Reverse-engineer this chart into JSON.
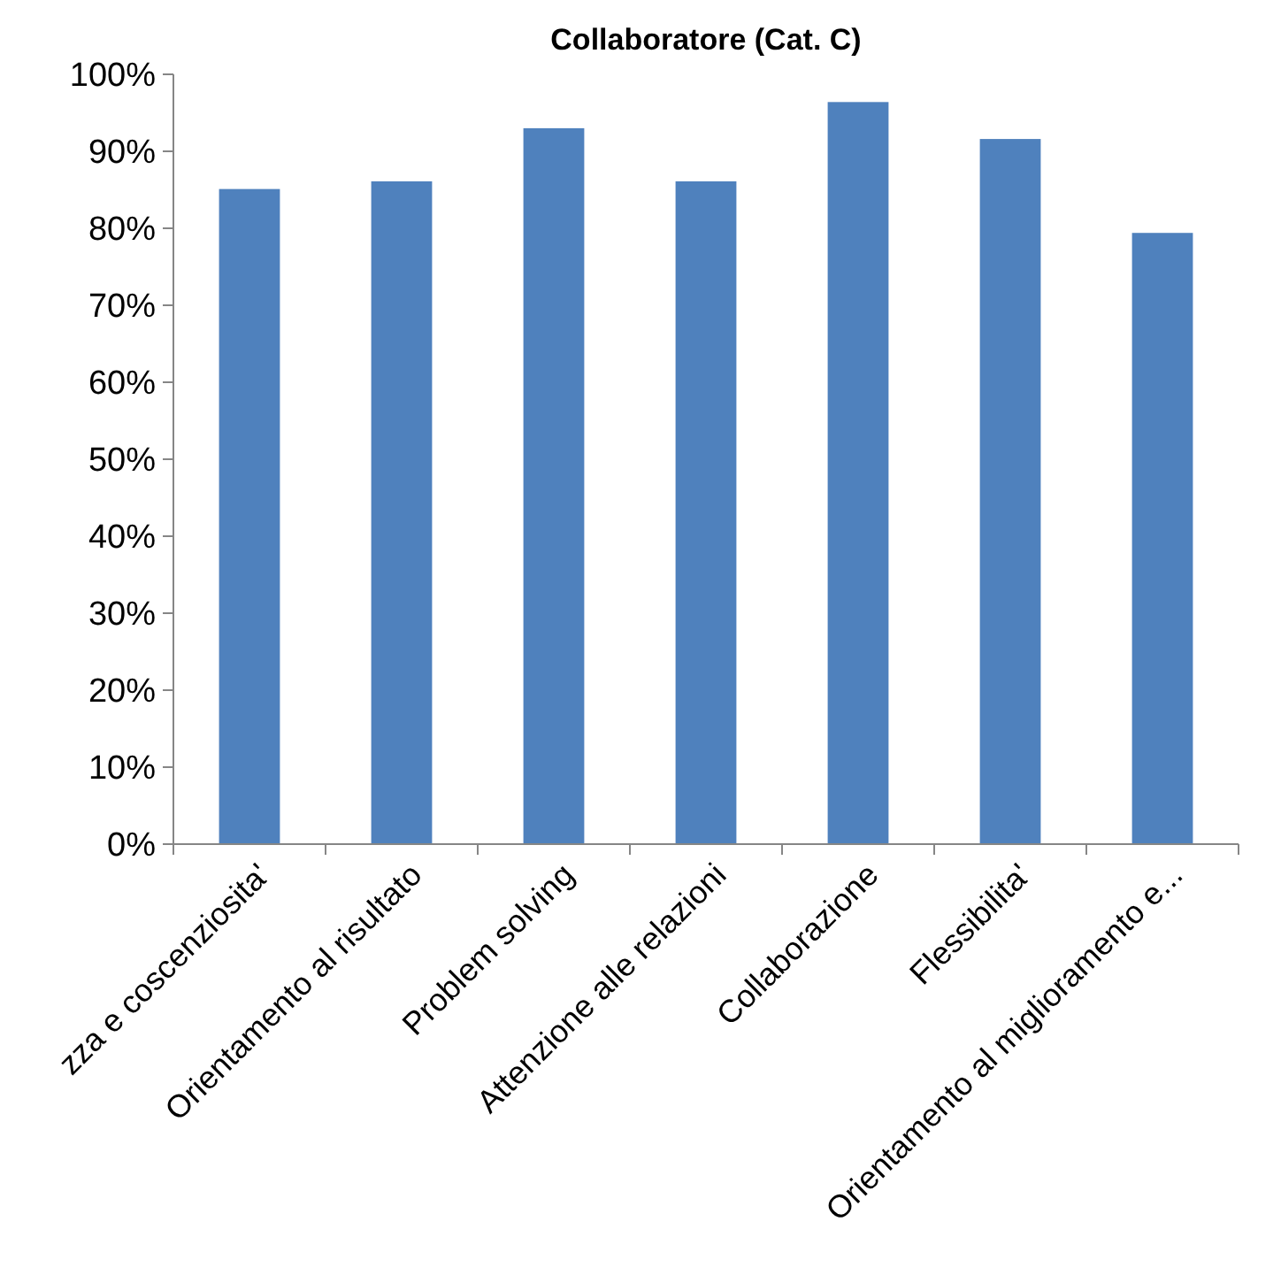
{
  "chart_data": {
    "type": "bar",
    "title": "Collaboratore (Cat. C)",
    "categories": [
      "zza e coscenziosita'",
      "Orientamento al risultato",
      "Problem solving",
      "Attenzione alle relazioni",
      "Collaborazione",
      "Flessibilita'",
      "Orientamento al miglioramento e..."
    ],
    "values": [
      85.1,
      86.1,
      93,
      86.1,
      96.4,
      91.6,
      79.4
    ],
    "color": "#4f81bd",
    "ylim": [
      0,
      100
    ],
    "yticks": [
      {
        "value": 0,
        "label": "0%"
      },
      {
        "value": 10,
        "label": "10%"
      },
      {
        "value": 20,
        "label": "20%"
      },
      {
        "value": 30,
        "label": "30%"
      },
      {
        "value": 40,
        "label": "40%"
      },
      {
        "value": 50,
        "label": "50%"
      },
      {
        "value": 60,
        "label": "60%"
      },
      {
        "value": 70,
        "label": "70%"
      },
      {
        "value": 80,
        "label": "80%"
      },
      {
        "value": 90,
        "label": "90%"
      },
      {
        "value": 100,
        "label": "100%"
      }
    ],
    "grid": false
  }
}
